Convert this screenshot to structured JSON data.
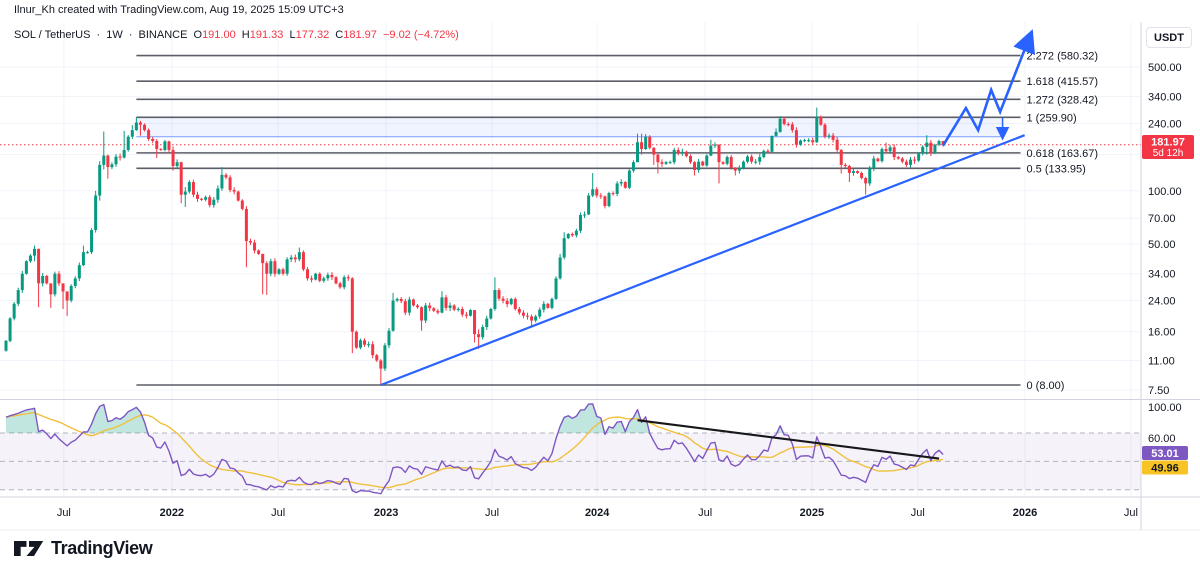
{
  "attribution": "Ilnur_Kh created with TradingView.com, Aug 19, 2025 15:09 UTC+3",
  "legend": {
    "symbol": "SOL / TetherUS",
    "dot": "·",
    "interval": "1W",
    "exchange": "BINANCE",
    "o_label": "O",
    "o_value": "191.00",
    "h_label": "H",
    "h_value": "191.33",
    "l_label": "L",
    "l_value": "177.32",
    "c_label": "C",
    "c_value": "181.97",
    "change": "−9.02 (−4.72%)"
  },
  "price_axis": {
    "currency_button": "USDT",
    "ticks": [
      {
        "label": "500.00",
        "price": 500
      },
      {
        "label": "340.00",
        "price": 340
      },
      {
        "label": "240.00",
        "price": 240
      },
      {
        "label": "100.00",
        "price": 100
      },
      {
        "label": "70.00",
        "price": 70
      },
      {
        "label": "50.00",
        "price": 50
      },
      {
        "label": "34.00",
        "price": 34
      },
      {
        "label": "24.00",
        "price": 24
      },
      {
        "label": "16.00",
        "price": 16
      },
      {
        "label": "11.00",
        "price": 11
      },
      {
        "label": "7.50",
        "price": 7.5
      }
    ],
    "grid_only_prices": [
      160
    ],
    "last_price_badge": {
      "price": "181.97",
      "countdown": "5d 12h"
    }
  },
  "time_axis": {
    "labels": [
      {
        "label": "Jul",
        "week": 14.2,
        "year": false
      },
      {
        "label": "2022",
        "week": 40.7,
        "year": true
      },
      {
        "label": "Jul",
        "week": 66.8,
        "year": false
      },
      {
        "label": "2023",
        "week": 93.3,
        "year": true
      },
      {
        "label": "Jul",
        "week": 119.3,
        "year": false
      },
      {
        "label": "2024",
        "week": 145.1,
        "year": true
      },
      {
        "label": "Jul",
        "week": 171.6,
        "year": false
      },
      {
        "label": "2025",
        "week": 197.8,
        "year": true
      },
      {
        "label": "Jul",
        "week": 223.8,
        "year": false
      },
      {
        "label": "2026",
        "week": 250.1,
        "year": true
      },
      {
        "label": "Jul",
        "week": 276.1,
        "year": false
      }
    ]
  },
  "rsi_pane": {
    "tick_labels": [
      {
        "label": "100.00",
        "v": 100
      },
      {
        "label": "60.00",
        "v": 60
      }
    ],
    "band_levels": [
      70,
      50,
      30
    ],
    "badges": [
      {
        "value": "53.01",
        "name": "rsi-value-badge"
      },
      {
        "value": "49.96",
        "name": "rsi-ma-value-badge"
      }
    ]
  },
  "footer": {
    "brand": "TradingView"
  },
  "colors": {
    "up": "#089981",
    "down": "#f23645",
    "trend_blue": "#2962ff",
    "band_fill": "rgba(41,98,255,0.07)",
    "fib_line": "#5b5e68",
    "current_price": "#f23645",
    "rsi_line": "#7e57c2",
    "rsi_ma_line": "#f0c13c",
    "rsi_band_fill": "rgba(126,87,194,0.08)",
    "divergence_line": "#17181c",
    "grid": "#f0f3fa",
    "axis_border": "#d1d4dc",
    "badge_red": "#f23645",
    "badge_purple": "#7e57c2",
    "badge_yellow": "#f7c325"
  },
  "chart_data": {
    "type": "candlestick+rsi",
    "title": "SOL / TetherUS 1W BINANCE with Fibonacci extension, trendline and projection",
    "last_bar": {
      "open": 191.0,
      "high": 191.33,
      "low": 177.32,
      "close": 181.97,
      "change": -9.02,
      "change_pct": -4.72
    },
    "first_open": 12.5,
    "closes": [
      14.2,
      19,
      23,
      27.5,
      34,
      40,
      43,
      47,
      30,
      33,
      30,
      26,
      34,
      30,
      27,
      24,
      29,
      32,
      38,
      45,
      45,
      60,
      94,
      140,
      158,
      136,
      141,
      156,
      154,
      170,
      202,
      220,
      243,
      236,
      220,
      196,
      191,
      172,
      170,
      190,
      170,
      138,
      145,
      95,
      99,
      112,
      95,
      90,
      89,
      92,
      83,
      89,
      103,
      123,
      119,
      101,
      99,
      88,
      79,
      52,
      51,
      46,
      44,
      39,
      34,
      40,
      34,
      36,
      34,
      41,
      42,
      41,
      45,
      36,
      32,
      31.5,
      34,
      31,
      32,
      33.5,
      32.5,
      30,
      28.5,
      32.5,
      32,
      16,
      13,
      14.3,
      13.5,
      13.6,
      11.8,
      11,
      9.9,
      13.4,
      16.2,
      24,
      24.5,
      23.8,
      20.5,
      24.3,
      22.5,
      22,
      18.5,
      22.5,
      21.7,
      21,
      20.5,
      25,
      21.8,
      22.5,
      21.3,
      21.5,
      20,
      19.7,
      21.2,
      15.5,
      14.9,
      17,
      19,
      21.5,
      27.5,
      24.6,
      23.9,
      22.9,
      24.5,
      21.5,
      20.5,
      19.7,
      19.5,
      18.5,
      19.5,
      21.3,
      23,
      21.8,
      24.5,
      32,
      42,
      54,
      57,
      56,
      59.5,
      73,
      73.5,
      94,
      102,
      94,
      93,
      82,
      97,
      96,
      110,
      112,
      104,
      130,
      145,
      188,
      172,
      202,
      175,
      160,
      145,
      142,
      145,
      145,
      170,
      164,
      166,
      157,
      145,
      131,
      146,
      139,
      158,
      180,
      182,
      145,
      142,
      155,
      135,
      130,
      134,
      146,
      156,
      146,
      146,
      155,
      168,
      166,
      204,
      215,
      255,
      238,
      237,
      220,
      182,
      192,
      193,
      193,
      188,
      262,
      236,
      202,
      205,
      194,
      170,
      140,
      138,
      126,
      129,
      126,
      118,
      110,
      134,
      152,
      147,
      172,
      167,
      176,
      155,
      152,
      146,
      140,
      150,
      148,
      162,
      177,
      187,
      163,
      182,
      191,
      181.97
    ],
    "wick_overrides": {
      "7": [
        49,
        40
      ],
      "8": [
        47,
        22
      ],
      "11": [
        30,
        21.8
      ],
      "14": [
        30,
        21.5
      ],
      "15": [
        27,
        19.6
      ],
      "19": [
        49,
        37.5
      ],
      "22": [
        100,
        58
      ],
      "23": [
        147,
        88
      ],
      "24": [
        216,
        132
      ],
      "25": [
        160,
        117
      ],
      "29": [
        218,
        152
      ],
      "31": [
        235,
        196
      ],
      "32": [
        259.9,
        218
      ],
      "33": [
        248,
        205
      ],
      "37": [
        196,
        153
      ],
      "40": [
        192,
        162
      ],
      "41": [
        178,
        130
      ],
      "43": [
        146,
        85
      ],
      "44": [
        105,
        81
      ],
      "53": [
        136,
        100
      ],
      "59": [
        82,
        37
      ],
      "63": [
        44,
        26
      ],
      "64": [
        40,
        25.8
      ],
      "72": [
        47.8,
        40
      ],
      "85": [
        32.5,
        12.1
      ],
      "92": [
        11.2,
        8.0
      ],
      "95": [
        26.5,
        16
      ],
      "102": [
        22.2,
        16.2
      ],
      "107": [
        27.1,
        20.3
      ],
      "115": [
        21,
        13.9
      ],
      "116": [
        16.5,
        12.8
      ],
      "120": [
        32.4,
        21
      ],
      "129": [
        20,
        17.3
      ],
      "135": [
        32.9,
        24.2
      ],
      "136": [
        44,
        31.5
      ],
      "137": [
        58.3,
        41
      ],
      "143": [
        97,
        73
      ],
      "144": [
        126,
        92
      ],
      "147": [
        94,
        79.5
      ],
      "155": [
        210,
        145
      ],
      "156": [
        210,
        160
      ],
      "157": [
        209,
        170
      ],
      "159": [
        176,
        140
      ],
      "160": [
        162,
        125
      ],
      "169": [
        147,
        122
      ],
      "173": [
        194,
        157
      ],
      "175": [
        183,
        110
      ],
      "179": [
        136,
        122
      ],
      "188": [
        205,
        165
      ],
      "189": [
        225,
        202
      ],
      "190": [
        264,
        213
      ],
      "199": [
        295,
        186
      ],
      "205": [
        172,
        125
      ],
      "207": [
        140,
        112
      ],
      "211": [
        120,
        95
      ],
      "216": [
        187,
        163
      ],
      "226": [
        206,
        160
      ],
      "230": [
        191.33,
        177.32
      ]
    },
    "fib_levels": [
      {
        "label": "2.272 (580.32)",
        "price": 580.32
      },
      {
        "label": "1.618 (415.57)",
        "price": 415.57
      },
      {
        "label": "1.272 (328.42)",
        "price": 328.42
      },
      {
        "label": "1 (259.90)",
        "price": 259.9
      },
      {
        "label": "0.618 (163.67)",
        "price": 163.67
      },
      {
        "label": "0.5 (133.95)",
        "price": 133.95
      },
      {
        "label": "0 (8.00)",
        "price": 8
      }
    ],
    "fib_span_weeks": [
      32,
      249
    ],
    "supply_zone": {
      "week_from": 32,
      "week_to": 244.6,
      "price_top": 259.9,
      "price_bottom": 202
    },
    "trendline": {
      "from": {
        "week": 92,
        "price": 8.0
      },
      "to": {
        "week": 250,
        "price": 206
      }
    },
    "projection_path": [
      {
        "week": 230,
        "price": 180
      },
      {
        "week": 235.6,
        "price": 293
      },
      {
        "week": 238.6,
        "price": 220
      },
      {
        "week": 241.8,
        "price": 371
      },
      {
        "week": 244,
        "price": 279
      },
      {
        "week": 251.3,
        "price": 745
      }
    ],
    "retest_arrow": {
      "week": 244.6,
      "price_from": 259.9,
      "price_to": 204
    },
    "current_price_line": 181.97,
    "rsi": {
      "period_note": "weekly RSI with smoothing MA",
      "last_value": 53.01,
      "last_ma": 49.96,
      "divergence_line": {
        "w1": 155,
        "v1": 79,
        "w2": 229,
        "v2": 52
      }
    }
  }
}
